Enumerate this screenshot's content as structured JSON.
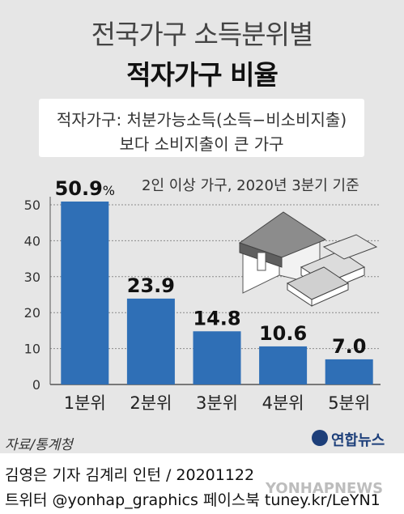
{
  "header": {
    "title_line1": "전국가구 소득분위별",
    "title_line2": "적자가구 비율"
  },
  "definition": {
    "line1": "적자가구: 처분가능소득(소득−비소비지출)",
    "line2": "보다 소비지출이 큰 가구"
  },
  "chart_data": {
    "type": "bar",
    "title": "적자가구 비율",
    "note": "2인 이상 가구, 2020년 3분기 기준",
    "categories": [
      "1분위",
      "2분위",
      "3분위",
      "4분위",
      "5분위"
    ],
    "values": [
      50.9,
      23.9,
      14.8,
      10.6,
      7.0
    ],
    "value_labels": [
      "50.9",
      "23.9",
      "14.8",
      "10.6",
      "7.0"
    ],
    "first_label_unit": "%",
    "ylim": [
      0,
      50
    ],
    "yticks": [
      "0",
      "10",
      "20",
      "30",
      "40",
      "50"
    ],
    "grid": true,
    "bar_color": "#2f6fb6",
    "grid_color": "#8a8a8a"
  },
  "footer": {
    "source": "자료/통계청",
    "brand": "연합뉴스",
    "credit_line1": "김영은 기자  김계리 인턴 / 20201122",
    "credit_line2": "트위터 @yonhap_graphics  페이스북 tuney.kr/LeYN1",
    "watermark": "YONHAPNEWS"
  },
  "illustration": {
    "icon": "house-with-money-icon"
  }
}
